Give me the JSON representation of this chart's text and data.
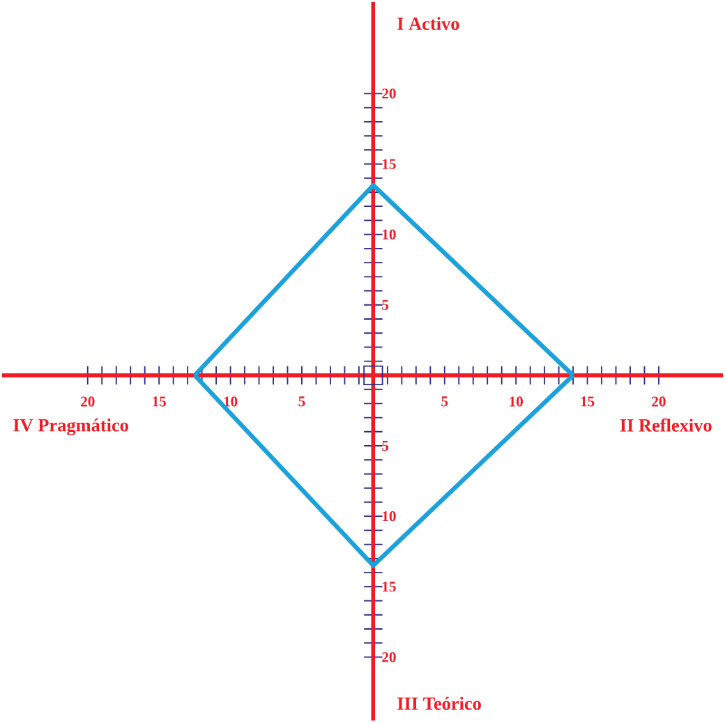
{
  "chart_data": {
    "type": "line",
    "series": [
      {
        "color": "#1ba1dc",
        "x": [
          -12.5,
          0,
          14
        ],
        "values": [
          0,
          13.5,
          0
        ]
      },
      {
        "color": "#1ba1dc",
        "x": [
          -12.5,
          0,
          14
        ],
        "values": [
          0,
          -13.5,
          0
        ]
      }
    ],
    "xlim": [
      -26,
      24.5
    ],
    "ylim": [
      -24.5,
      26.5
    ],
    "xticks": [
      {
        "value": -20,
        "label": "20"
      },
      {
        "value": -19,
        "label": null
      },
      {
        "value": -18,
        "label": null
      },
      {
        "value": -17,
        "label": null
      },
      {
        "value": -16,
        "label": null
      },
      {
        "value": -15,
        "label": "15"
      },
      {
        "value": -14,
        "label": null
      },
      {
        "value": -13,
        "label": null
      },
      {
        "value": -12,
        "label": null
      },
      {
        "value": -11,
        "label": null
      },
      {
        "value": -10,
        "label": "10"
      },
      {
        "value": -9,
        "label": null
      },
      {
        "value": -8,
        "label": null
      },
      {
        "value": -7,
        "label": null
      },
      {
        "value": -6,
        "label": null
      },
      {
        "value": -5,
        "label": "5"
      },
      {
        "value": -4,
        "label": null
      },
      {
        "value": -3,
        "label": null
      },
      {
        "value": -2,
        "label": null
      },
      {
        "value": -1,
        "label": null
      },
      {
        "value": 1,
        "label": null
      },
      {
        "value": 2,
        "label": null
      },
      {
        "value": 3,
        "label": null
      },
      {
        "value": 4,
        "label": null
      },
      5,
      {
        "value": 6,
        "label": null
      },
      {
        "value": 7,
        "label": null
      },
      {
        "value": 8,
        "label": null
      },
      {
        "value": 9,
        "label": null
      },
      10,
      {
        "value": 11,
        "label": null
      },
      {
        "value": 12,
        "label": null
      },
      {
        "value": 13,
        "label": null
      },
      {
        "value": 14,
        "label": null
      },
      15,
      {
        "value": 16,
        "label": null
      },
      {
        "value": 17,
        "label": null
      },
      {
        "value": 18,
        "label": null
      },
      {
        "value": 19,
        "label": null
      },
      20
    ],
    "yticks": [
      {
        "value": -20,
        "label": "20"
      },
      {
        "value": -19,
        "label": null
      },
      {
        "value": -18,
        "label": null
      },
      {
        "value": -17,
        "label": null
      },
      {
        "value": -16,
        "label": null
      },
      {
        "value": -15,
        "label": "15"
      },
      {
        "value": -14,
        "label": null
      },
      {
        "value": -13,
        "label": null
      },
      {
        "value": -12,
        "label": null
      },
      {
        "value": -11,
        "label": null
      },
      {
        "value": -10,
        "label": "10"
      },
      {
        "value": -9,
        "label": null
      },
      {
        "value": -8,
        "label": null
      },
      {
        "value": -7,
        "label": null
      },
      {
        "value": -6,
        "label": null
      },
      {
        "value": -5,
        "label": "5"
      },
      {
        "value": -4,
        "label": null
      },
      {
        "value": -3,
        "label": null
      },
      {
        "value": -2,
        "label": null
      },
      {
        "value": -1,
        "label": null
      },
      {
        "value": 1,
        "label": null
      },
      {
        "value": 2,
        "label": null
      },
      {
        "value": 3,
        "label": null
      },
      {
        "value": 4,
        "label": null
      },
      5,
      {
        "value": 6,
        "label": null
      },
      {
        "value": 7,
        "label": null
      },
      {
        "value": 8,
        "label": null
      },
      {
        "value": 9,
        "label": null
      },
      10,
      {
        "value": 11,
        "label": null
      },
      {
        "value": 12,
        "label": null
      },
      {
        "value": 13,
        "label": null
      },
      {
        "value": 14,
        "label": null
      },
      15,
      {
        "value": 16,
        "label": null
      },
      {
        "value": 17,
        "label": null
      },
      {
        "value": 18,
        "label": null
      },
      {
        "value": 19,
        "label": null
      },
      20
    ],
    "annotations": [
      "I Activo",
      "II Reflexivo",
      "III Teórico",
      "IV Pragmático"
    ],
    "marker": "none",
    "line_style": "solid"
  }
}
